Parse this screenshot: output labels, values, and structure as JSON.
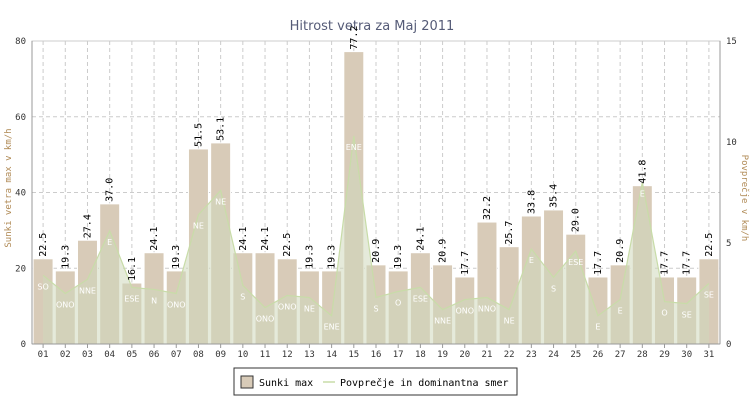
{
  "chart_data": {
    "type": "bar",
    "title": "Hitrost vetra za Maj 2011",
    "ylabel_left": "Sunki vetra max v km/h",
    "ylabel_right": "Povprečje v km/h",
    "ylim_left": [
      0,
      80
    ],
    "ylim_right": [
      0,
      15
    ],
    "yticks_left": [
      0,
      20,
      40,
      60,
      80
    ],
    "yticks_right": [
      0,
      5,
      10,
      15
    ],
    "grid": true,
    "legend_position": "bottom",
    "categories": [
      "01",
      "02",
      "03",
      "04",
      "05",
      "06",
      "07",
      "08",
      "09",
      "10",
      "11",
      "12",
      "13",
      "14",
      "15",
      "16",
      "17",
      "18",
      "19",
      "20",
      "21",
      "22",
      "23",
      "24",
      "25",
      "26",
      "27",
      "28",
      "29",
      "30",
      "31"
    ],
    "series": [
      {
        "name": "Sunki max",
        "type": "bar",
        "axis": "left",
        "values": [
          22.5,
          19.3,
          27.4,
          37.0,
          16.1,
          24.1,
          19.3,
          51.5,
          53.1,
          24.1,
          24.1,
          22.5,
          19.3,
          19.3,
          77.2,
          20.9,
          19.3,
          24.1,
          20.9,
          17.7,
          32.2,
          25.7,
          33.8,
          35.4,
          29.0,
          17.7,
          20.9,
          41.8,
          17.7,
          17.7,
          22.5
        ],
        "labels": [
          "22.5",
          "19.3",
          "27.4",
          "37.0",
          "16.1",
          "24.1",
          "19.3",
          "51.5",
          "53.1",
          "24.1",
          "24.1",
          "22.5",
          "19.3",
          "19.3",
          "77.2",
          "20.9",
          "19.3",
          "24.1",
          "20.9",
          "17.7",
          "32.2",
          "25.7",
          "33.8",
          "35.4",
          "29.0",
          "17.7",
          "20.9",
          "41.8",
          "17.7",
          "17.7",
          "22.5"
        ]
      },
      {
        "name": "Povprečje in dominantna smer",
        "type": "area",
        "axis": "right",
        "values": [
          3.4,
          2.5,
          3.2,
          5.6,
          2.8,
          2.7,
          2.5,
          6.4,
          7.6,
          2.9,
          1.8,
          2.4,
          2.3,
          1.4,
          10.3,
          2.3,
          2.6,
          2.8,
          1.7,
          2.2,
          2.3,
          1.7,
          4.7,
          3.3,
          4.6,
          1.4,
          2.2,
          8.0,
          2.1,
          2.0,
          3.0
        ],
        "directions": [
          "SO",
          "ONO",
          "NNE",
          "E",
          "ESE",
          "N",
          "ONO",
          "NE",
          "NE",
          "S",
          "ONO",
          "ONO",
          "NE",
          "ENE",
          "ENE",
          "S",
          "O",
          "ESE",
          "NNE",
          "ONO",
          "NNO",
          "NE",
          "E",
          "S",
          "ESE",
          "E",
          "E",
          "E",
          "O",
          "SE",
          "SE"
        ]
      }
    ],
    "colors": {
      "bar_fill": "#d8cbb8",
      "bar_stroke": "#ffffff",
      "area_fill": "#d0d8bc",
      "area_line": "#c8dca8",
      "grid": "#cccccc",
      "axis": "#999999"
    }
  }
}
